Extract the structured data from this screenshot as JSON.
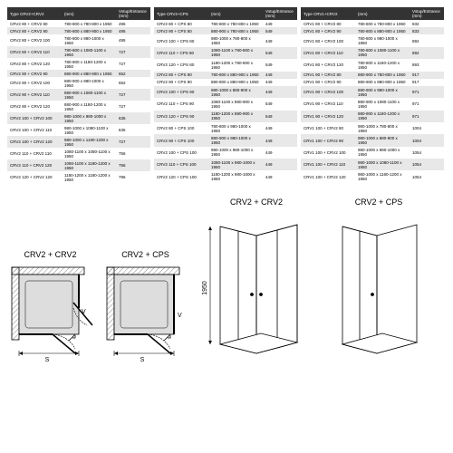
{
  "tables": [
    {
      "headers": [
        "Type CRV2+CRV2",
        "(mm)",
        "Vstup/Entrance (mm)"
      ],
      "rows": [
        [
          "CRV2 80 + CRV2 80",
          "780-800 x 780-800 x 1950",
          "495"
        ],
        [
          "CRV2 80 + CRV2 90",
          "780-800 x 880-900 x 1950",
          "495"
        ],
        [
          "CRV2 80 + CRV2 100",
          "780-800 x 980-1000 x 1950",
          "495"
        ],
        [
          "CRV2 80 + CRV2 110",
          "780-800 x 1080-1100 x 1950",
          "727"
        ],
        [
          "CRV2 80 + CRV2 120",
          "780-800 x 1180-1200 x 1950",
          "727"
        ],
        [
          "CRV2 90 + CRV2 90",
          "880-900 x 880-900 x 1950",
          "652"
        ],
        [
          "CRV2 90 + CRV2 100",
          "880-900 x 980-1000 x 1950",
          "652"
        ],
        [
          "CRV2 90 + CRV2 110",
          "880-900 x 1080-1100 x 1950",
          "727"
        ],
        [
          "CRV2 90 + CRV2 120",
          "880-900 x 1180-1200 x 1950",
          "727"
        ],
        [
          "CRV2 100 + CRV2 100",
          "980-1000 x 980-1000 x 1950",
          "635"
        ],
        [
          "CRV2 100 + CRV2 110",
          "980-1000 x 1080-1100 x 1950",
          "635"
        ],
        [
          "CRV2 100 + CRV2 120",
          "980-1000 x 1180-1200 x 1950",
          "727"
        ],
        [
          "CRV2 110 + CRV2 110",
          "1080-1100 x 1080-1100 x 1950",
          "756"
        ],
        [
          "CRV2 110 + CRV2 120",
          "1080-1100 x 1180-1200 x 1950",
          "756"
        ],
        [
          "CRV2 120 + CRV2 120",
          "1180-1200 x 1180-1200 x 1950",
          "796"
        ]
      ]
    },
    {
      "headers": [
        "Type CRV2+CPS",
        "(mm)",
        "Vstup/Entrance (mm)"
      ],
      "rows": [
        [
          "CRV2 80 + CPS 80",
          "780-800 x 780-800 x 1950",
          "449"
        ],
        [
          "CRV2 90 + CPS 80",
          "880-900 x 780-800 x 1950",
          "549"
        ],
        [
          "CRV2 100 + CPS 80",
          "980-1000 x 780-800 x 1950",
          "449"
        ],
        [
          "CRV2 110 + CPS 80",
          "1080-1100 x 780-800 x 1950",
          "549"
        ],
        [
          "CRV2 120 + CPS 80",
          "1180-1200 x 780-800 x 1950",
          "549"
        ],
        [
          "CRV2 80 + CPS 90",
          "780-800 x 880-900 x 1950",
          "449"
        ],
        [
          "CRV2 90 + CPS 90",
          "880-900 x 880-900 x 1950",
          "449"
        ],
        [
          "CRV2 100 + CPS 90",
          "980-1000 x 880-900 x 1950",
          "449"
        ],
        [
          "CRV2 110 + CPS 90",
          "1080-1100 x 880-900 x 1950",
          "549"
        ],
        [
          "CRV2 120 + CPS 90",
          "1180-1200 x 880-900 x 1950",
          "549"
        ],
        [
          "CRV2 80 + CPS 100",
          "780-800 x 980-1000 x 1950",
          "449"
        ],
        [
          "CRV2 90 + CPS 100",
          "880-900 x 980-1000 x 1950",
          "449"
        ],
        [
          "CRV2 100 + CPS 100",
          "980-1000 x 980-1000 x 1950",
          "449"
        ],
        [
          "CRV2 110 + CPS 100",
          "1080-1100 x 980-1000 x 1950",
          "449"
        ],
        [
          "CRV2 120 + CPS 100",
          "1180-1200 x 980-1000 x 1950",
          "449"
        ]
      ]
    },
    {
      "headers": [
        "Type CRV1+CRV2",
        "(mm)",
        "Vstup/Entrance (mm)"
      ],
      "rows": [
        [
          "CRV1 80 + CRV2 80",
          "780-800 x 780-800 x 1950",
          "832"
        ],
        [
          "CRV1 80 + CRV2 90",
          "780-800 x 880-900 x 1950",
          "833"
        ],
        [
          "CRV1 80 + CRV2 100",
          "780-800 x 980-1000 x 1950",
          "892"
        ],
        [
          "CRV1 80 + CRV2 110",
          "780-800 x 1080-1100 x 1950",
          "892"
        ],
        [
          "CRV1 80 + CRV2 120",
          "780-800 x 1180-1200 x 1950",
          "893"
        ],
        [
          "CRV1 90 + CRV2 80",
          "880-900 x 780-800 x 1950",
          "917"
        ],
        [
          "CRV1 90 + CRV2 90",
          "880-900 x 880-900 x 1950",
          "917"
        ],
        [
          "CRV1 90 + CRV2 100",
          "880-900 x 980-1000 x 1950",
          "971"
        ],
        [
          "CRV1 90 + CRV2 110",
          "880-900 x 1080-1100 x 1950",
          "971"
        ],
        [
          "CRV1 90 + CRV2 120",
          "880-900 x 1180-1200 x 1950",
          "971"
        ],
        [
          "CRV1 100 + CRV2 80",
          "980-1000 x 780-800 x 1950",
          "1004"
        ],
        [
          "CRV1 100 + CRV2 90",
          "980-1000 x 880-900 x 1950",
          "1004"
        ],
        [
          "CRV1 100 + CRV2 100",
          "980-1000 x 980-1000 x 1950",
          "1054"
        ],
        [
          "CRV1 100 + CRV2 110",
          "980-1000 x 1080-1100 x 1950",
          "1054"
        ],
        [
          "CRV1 100 + CRV2 120",
          "980-1000 x 1180-1200 x 1950",
          "1054"
        ]
      ]
    }
  ],
  "diagrams": {
    "plan1_label": "CRV2 + CRV2",
    "plan2_label": "CRV2 + CPS",
    "iso1_label": "CRV2 + CRV2",
    "iso2_label": "CRV2 + CPS",
    "height_label": "1950",
    "letter_s": "S",
    "letter_v": "V",
    "line_color": "#000000",
    "hatch_color": "#888888",
    "fill_gray": "#dddddd"
  }
}
